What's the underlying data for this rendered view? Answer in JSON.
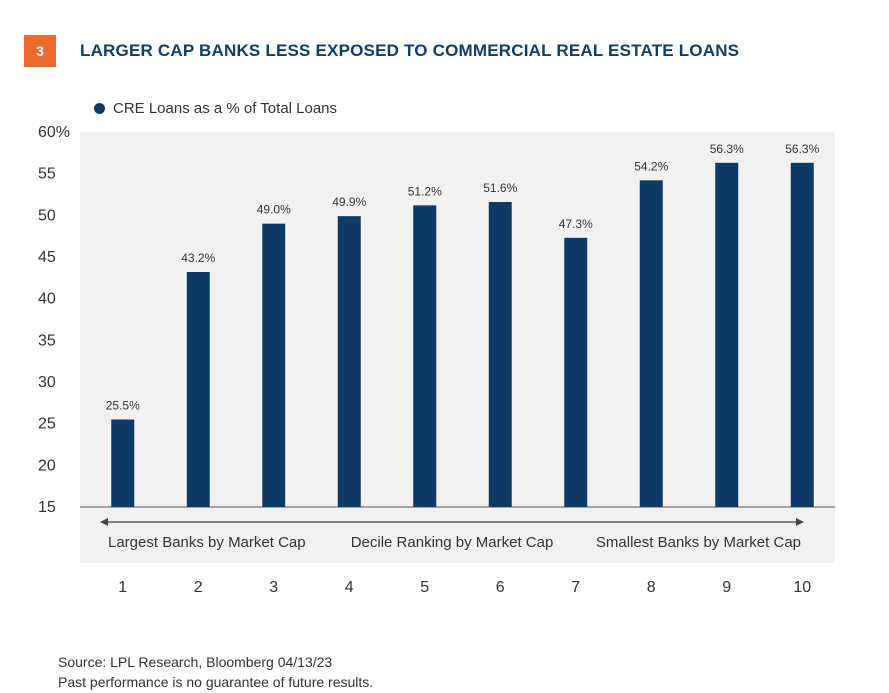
{
  "header": {
    "badge": "3",
    "title": "LARGER CAP BANKS LESS EXPOSED TO COMMERCIAL REAL ESTATE LOANS"
  },
  "colors": {
    "accent": "#ec6a2c",
    "title": "#0f3e6b",
    "bar": "#0e3a66",
    "plot_bg": "#f1f1f2"
  },
  "chart_data": {
    "type": "bar",
    "title": "",
    "legend_position": "top-left",
    "categories": [
      "1",
      "2",
      "3",
      "4",
      "5",
      "6",
      "7",
      "8",
      "9",
      "10"
    ],
    "series": [
      {
        "name": "CRE Loans as a % of Total Loans",
        "values": [
          25.5,
          43.2,
          49.0,
          49.9,
          51.2,
          51.6,
          47.3,
          54.2,
          56.3,
          56.3
        ]
      }
    ],
    "data_labels": [
      "25.5%",
      "43.2%",
      "49.0%",
      "49.9%",
      "51.2%",
      "51.6%",
      "47.3%",
      "54.2%",
      "56.3%",
      "56.3%"
    ],
    "ylim": [
      15,
      60
    ],
    "yticks": [
      15,
      20,
      25,
      30,
      35,
      40,
      45,
      50,
      55,
      60
    ],
    "ytick_labels": [
      "15",
      "20",
      "25",
      "30",
      "35",
      "40",
      "45",
      "50",
      "55",
      "60%"
    ],
    "grid": false,
    "axis_annotations": {
      "left": "Largest Banks by Market Cap",
      "center": "Decile Ranking by Market Cap",
      "right": "Smallest Banks by Market Cap"
    }
  },
  "footer": {
    "source": "Source: LPL Research, Bloomberg  04/13/23",
    "disclaimer": "Past performance is no guarantee of future results."
  }
}
